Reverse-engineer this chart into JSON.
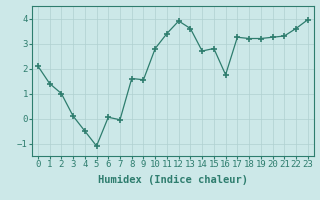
{
  "x": [
    0,
    1,
    2,
    3,
    4,
    5,
    6,
    7,
    8,
    9,
    10,
    11,
    12,
    13,
    14,
    15,
    16,
    17,
    18,
    19,
    20,
    21,
    22,
    23
  ],
  "y": [
    2.1,
    1.4,
    1.0,
    0.1,
    -0.5,
    -1.1,
    0.05,
    -0.05,
    1.6,
    1.55,
    2.8,
    3.4,
    3.9,
    3.6,
    2.7,
    2.8,
    1.75,
    3.25,
    3.2,
    3.2,
    3.25,
    3.3,
    3.6,
    3.95
  ],
  "line_color": "#2e7d6e",
  "marker": "+",
  "marker_size": 5,
  "marker_linewidth": 1.2,
  "bg_color": "#cce8e8",
  "grid_color": "#b0d0d0",
  "xlabel": "Humidex (Indice chaleur)",
  "xlim": [
    -0.5,
    23.5
  ],
  "ylim": [
    -1.5,
    4.5
  ],
  "yticks": [
    -1,
    0,
    1,
    2,
    3,
    4
  ],
  "xticks": [
    0,
    1,
    2,
    3,
    4,
    5,
    6,
    7,
    8,
    9,
    10,
    11,
    12,
    13,
    14,
    15,
    16,
    17,
    18,
    19,
    20,
    21,
    22,
    23
  ],
  "xlabel_fontsize": 7.5,
  "tick_fontsize": 6.5
}
